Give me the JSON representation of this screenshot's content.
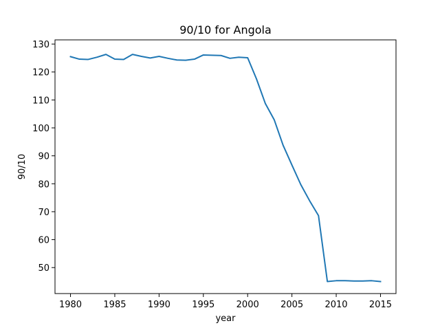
{
  "chart_data": {
    "type": "line",
    "title": "90/10 for Angola",
    "xlabel": "year",
    "ylabel": "90/10",
    "xlim": [
      1978.25,
      2016.75
    ],
    "ylim": [
      40.7,
      131.5
    ],
    "x_ticks": [
      1980,
      1985,
      1990,
      1995,
      2000,
      2005,
      2010,
      2015
    ],
    "y_ticks": [
      50,
      60,
      70,
      80,
      90,
      100,
      110,
      120,
      130
    ],
    "grid": false,
    "series": [
      {
        "color": "#1f77b4",
        "x": [
          1980,
          1981,
          1982,
          1983,
          1984,
          1985,
          1986,
          1987,
          1988,
          1989,
          1990,
          1991,
          1992,
          1993,
          1994,
          1995,
          1996,
          1997,
          1998,
          1999,
          2000,
          2001,
          2002,
          2003,
          2004,
          2005,
          2006,
          2007,
          2008,
          2009,
          2010,
          2011,
          2012,
          2013,
          2014,
          2015
        ],
        "y": [
          125.5,
          124.6,
          124.5,
          125.3,
          126.3,
          124.6,
          124.5,
          126.3,
          125.6,
          125.0,
          125.6,
          124.9,
          124.3,
          124.2,
          124.6,
          126.1,
          126.0,
          125.9,
          124.9,
          125.3,
          125.1,
          117.5,
          108.7,
          102.9,
          93.8,
          86.7,
          79.7,
          73.9,
          68.6,
          45.0,
          45.3,
          45.3,
          45.2,
          45.2,
          45.3,
          45.0
        ]
      }
    ]
  }
}
